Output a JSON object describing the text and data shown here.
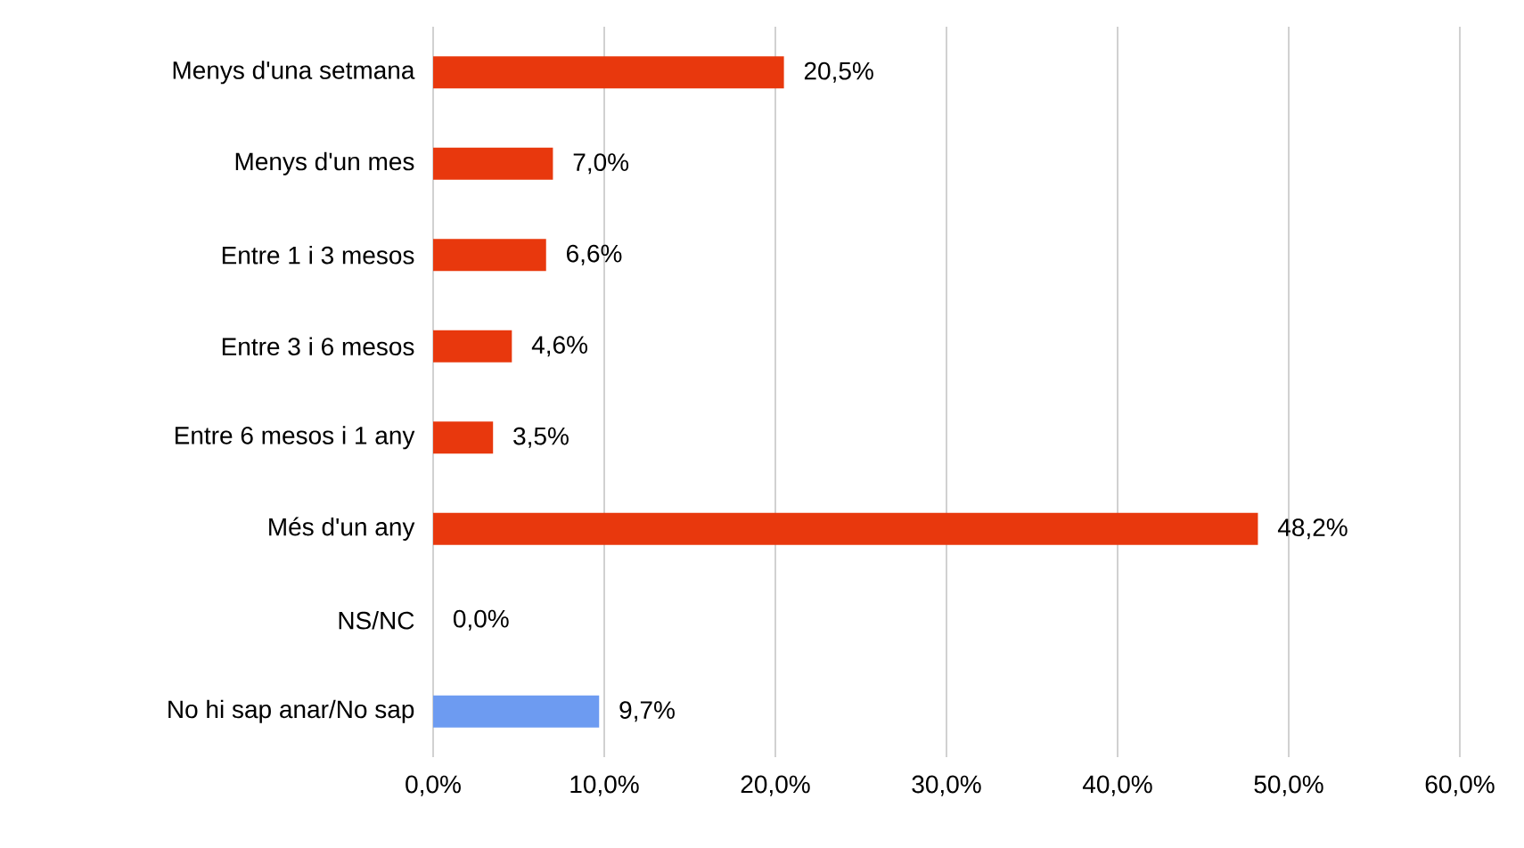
{
  "chart_data": {
    "type": "bar",
    "orientation": "horizontal",
    "categories": [
      "Menys d'una setmana",
      "Menys d'un mes",
      "Entre 1 i 3 mesos",
      "Entre 3 i 6 mesos",
      "Entre 6 mesos i 1 any",
      "Més d'un any",
      "NS/NC",
      "No hi sap anar/No sap"
    ],
    "values": [
      20.5,
      7.0,
      6.6,
      4.6,
      3.5,
      48.2,
      0.0,
      9.7
    ],
    "value_labels": [
      "20,5%",
      "7,0%",
      "6,6%",
      "4,6%",
      "3,5%",
      "48,2%",
      "0,0%",
      "9,7%"
    ],
    "colors": [
      "#e8380d",
      "#e8380d",
      "#e8380d",
      "#e8380d",
      "#e8380d",
      "#e8380d",
      "#e8380d",
      "#6d9bf1"
    ],
    "xlim": [
      0,
      60
    ],
    "xticks": [
      {
        "value": 0,
        "label": "0,0%"
      },
      {
        "value": 10,
        "label": "10,0%"
      },
      {
        "value": 20,
        "label": "20,0%"
      },
      {
        "value": 30,
        "label": "30,0%"
      },
      {
        "value": 40,
        "label": "40,0%"
      },
      {
        "value": 50,
        "label": "50,0%"
      },
      {
        "value": 60,
        "label": "60,0%"
      }
    ],
    "grid": "x"
  }
}
